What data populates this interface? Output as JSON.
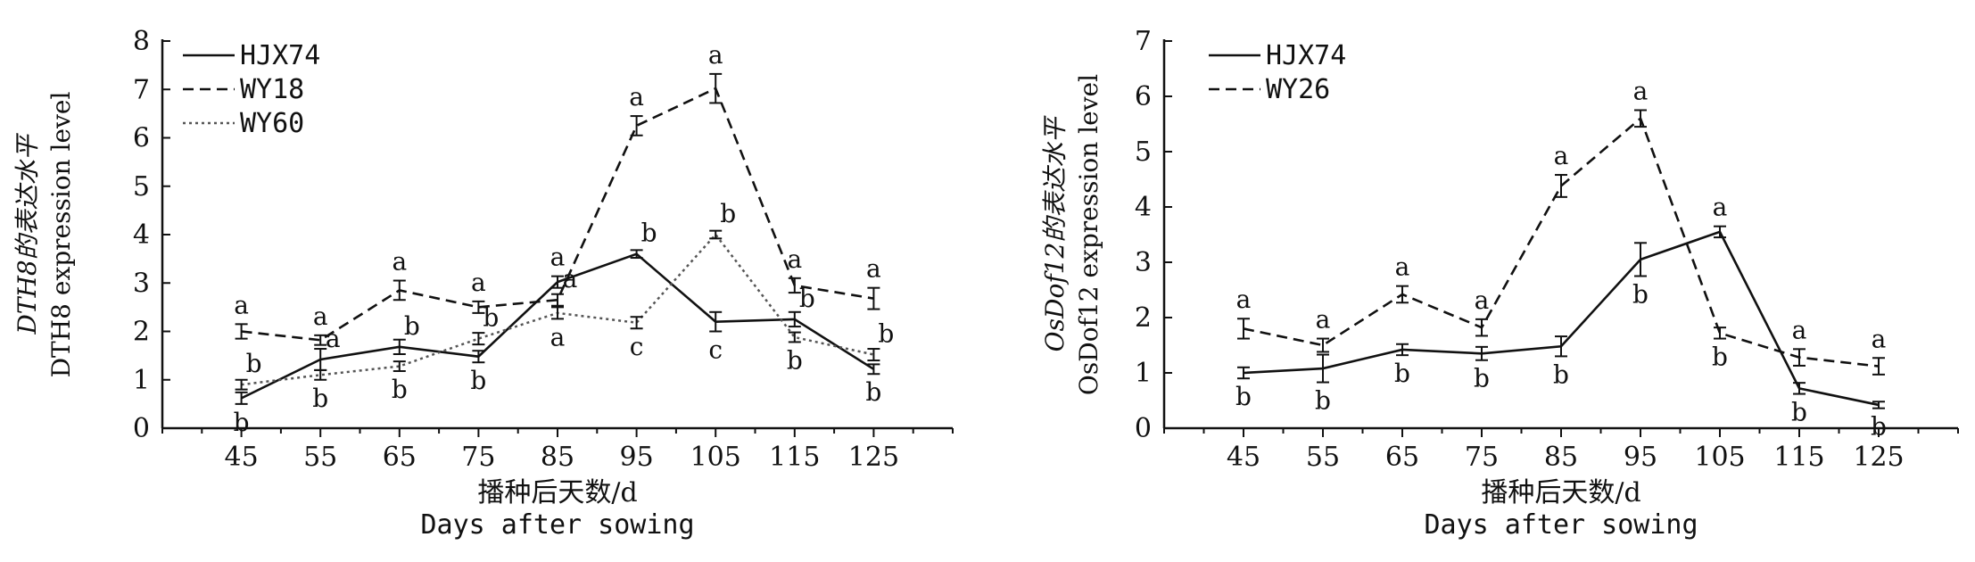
{
  "chart_data": [
    {
      "type": "line",
      "title": "",
      "ylabel_cn": "DTH8的表达水平",
      "ylabel_en": "DTH8 expression level",
      "xlabel_cn": "播种后天数/d",
      "xlabel_en": "Days after sowing",
      "x": [
        45,
        55,
        65,
        75,
        85,
        95,
        105,
        115,
        125
      ],
      "xlim": [
        35,
        135
      ],
      "ylim": [
        0,
        8
      ],
      "yticks": [
        0,
        1,
        2,
        3,
        4,
        5,
        6,
        7,
        8
      ],
      "grid": false,
      "legend_position": "top-left",
      "series": [
        {
          "name": "HJX74",
          "style": "solid",
          "color": "#111111",
          "values": [
            0.62,
            1.42,
            1.68,
            1.48,
            3.02,
            3.6,
            2.2,
            2.25,
            1.22
          ],
          "errors": [
            0.12,
            0.22,
            0.15,
            0.12,
            0.12,
            0.08,
            0.2,
            0.15,
            0.1
          ],
          "letters": [
            "b",
            "a",
            "b",
            "b",
            "a",
            "b",
            "c",
            "b",
            "b"
          ]
        },
        {
          "name": "WY18",
          "style": "dashed",
          "color": "#111111",
          "values": [
            2.0,
            1.82,
            2.85,
            2.5,
            2.65,
            6.25,
            7.02,
            2.95,
            2.68
          ],
          "errors": [
            0.15,
            0.1,
            0.2,
            0.12,
            0.12,
            0.2,
            0.3,
            0.15,
            0.22
          ],
          "letters": [
            "a",
            "a",
            "a",
            "a",
            "a",
            "a",
            "a",
            "a",
            "a"
          ]
        },
        {
          "name": "WY60",
          "style": "dotted",
          "color": "#555555",
          "values": [
            0.9,
            1.1,
            1.28,
            1.85,
            2.38,
            2.18,
            4.0,
            1.88,
            1.52
          ],
          "errors": [
            0.1,
            0.1,
            0.1,
            0.12,
            0.12,
            0.12,
            0.08,
            0.1,
            0.12
          ],
          "letters": [
            "b",
            "b",
            "b",
            "b",
            "a",
            "c",
            "b",
            "b",
            "b"
          ]
        }
      ]
    },
    {
      "type": "line",
      "title": "",
      "ylabel_cn": "OsDof12的表达水平",
      "ylabel_en": "OsDof12 expression level",
      "xlabel_cn": "播种后天数/d",
      "xlabel_en": "Days after sowing",
      "x": [
        45,
        55,
        65,
        75,
        85,
        95,
        105,
        115,
        125
      ],
      "xlim": [
        35,
        135
      ],
      "ylim": [
        0,
        7
      ],
      "yticks": [
        0,
        1,
        2,
        3,
        4,
        5,
        6,
        7
      ],
      "grid": false,
      "legend_position": "top-left",
      "series": [
        {
          "name": "HJX74",
          "style": "solid",
          "color": "#111111",
          "values": [
            1.0,
            1.08,
            1.42,
            1.35,
            1.48,
            3.05,
            3.55,
            0.72,
            0.42
          ],
          "errors": [
            0.1,
            0.25,
            0.1,
            0.12,
            0.18,
            0.3,
            0.1,
            0.1,
            0.06
          ],
          "letters": [
            "b",
            "b",
            "b",
            "b",
            "b",
            "b",
            "a",
            "b",
            "b"
          ]
        },
        {
          "name": "WY26",
          "style": "dashed",
          "color": "#111111",
          "values": [
            1.8,
            1.5,
            2.42,
            1.82,
            4.38,
            5.6,
            1.72,
            1.28,
            1.12
          ],
          "errors": [
            0.18,
            0.12,
            0.15,
            0.15,
            0.2,
            0.15,
            0.1,
            0.15,
            0.15
          ],
          "letters": [
            "a",
            "a",
            "a",
            "a",
            "a",
            "a",
            "b",
            "a",
            "a"
          ]
        }
      ]
    }
  ]
}
